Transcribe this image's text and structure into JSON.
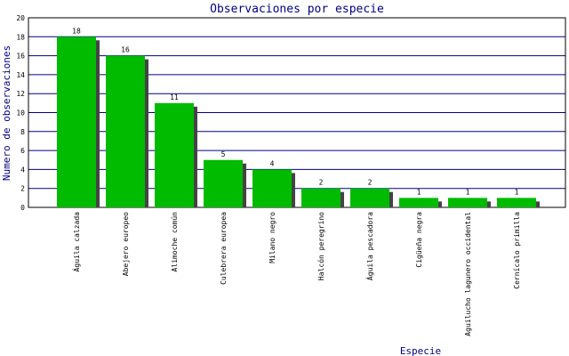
{
  "chart_data": {
    "type": "bar",
    "title": "Observaciones por especie",
    "x_label": "Especie",
    "y_label": "Numero de observaciones",
    "categories": [
      "Águila calzada",
      "Abejero europeo",
      "Alimoche común",
      "Culebrera europea",
      "Milano negro",
      "Halcón peregrino",
      "Águila pescadora",
      "Cigüeña negra",
      "Aguilucho lagunero occidental",
      "Cernícalo primilla"
    ],
    "values": [
      18,
      16,
      11,
      5,
      4,
      2,
      2,
      1,
      1,
      1
    ],
    "color": "#00bb00",
    "shadow_color": "#444444",
    "grid_color": "#000080",
    "ylim": [
      0,
      20
    ],
    "yticks": [
      0,
      2,
      4,
      6,
      8,
      10,
      12,
      14,
      16,
      18,
      20
    ],
    "grid": true
  }
}
